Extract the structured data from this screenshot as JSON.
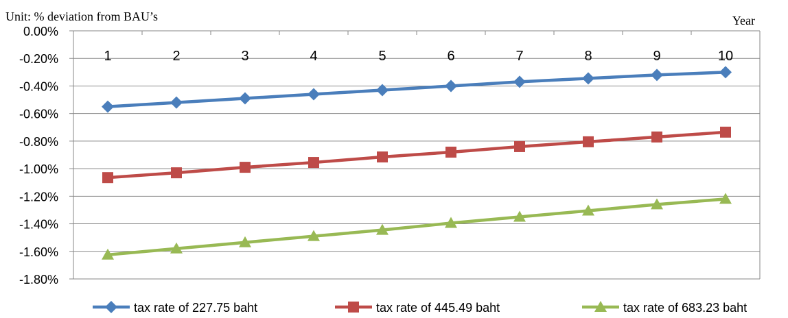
{
  "chart_data": {
    "type": "line",
    "unit_label": "Unit: % deviation from BAU’s",
    "xlabel": "Year",
    "ylabel": "",
    "x": [
      1,
      2,
      3,
      4,
      5,
      6,
      7,
      8,
      9,
      10
    ],
    "x_tick_labels": [
      "1",
      "2",
      "3",
      "4",
      "5",
      "6",
      "7",
      "8",
      "9",
      "10"
    ],
    "ylim": [
      -1.8,
      0.0
    ],
    "y_ticks": [
      0.0,
      -0.2,
      -0.4,
      -0.6,
      -0.8,
      -1.0,
      -1.2,
      -1.4,
      -1.6,
      -1.8
    ],
    "y_tick_labels": [
      "0.00%",
      "-0.20%",
      "-0.40%",
      "-0.60%",
      "-0.80%",
      "-1.00%",
      "-1.20%",
      "-1.40%",
      "-1.60%",
      "-1.80%"
    ],
    "grid": true,
    "legend_position": "bottom",
    "series": [
      {
        "name": "tax rate of 227.75 baht",
        "color": "#4a7ebb",
        "marker": "diamond",
        "values": [
          -0.55,
          -0.52,
          -0.49,
          -0.46,
          -0.43,
          -0.4,
          -0.37,
          -0.345,
          -0.32,
          -0.3
        ]
      },
      {
        "name": "tax rate of 445.49 baht",
        "color": "#be4b48",
        "marker": "square",
        "values": [
          -1.065,
          -1.03,
          -0.99,
          -0.955,
          -0.915,
          -0.88,
          -0.84,
          -0.805,
          -0.77,
          -0.735
        ]
      },
      {
        "name": "tax rate of 683.23 baht",
        "color": "#98b954",
        "marker": "triangle",
        "values": [
          -1.625,
          -1.58,
          -1.535,
          -1.49,
          -1.445,
          -1.395,
          -1.35,
          -1.305,
          -1.26,
          -1.22
        ]
      }
    ]
  }
}
